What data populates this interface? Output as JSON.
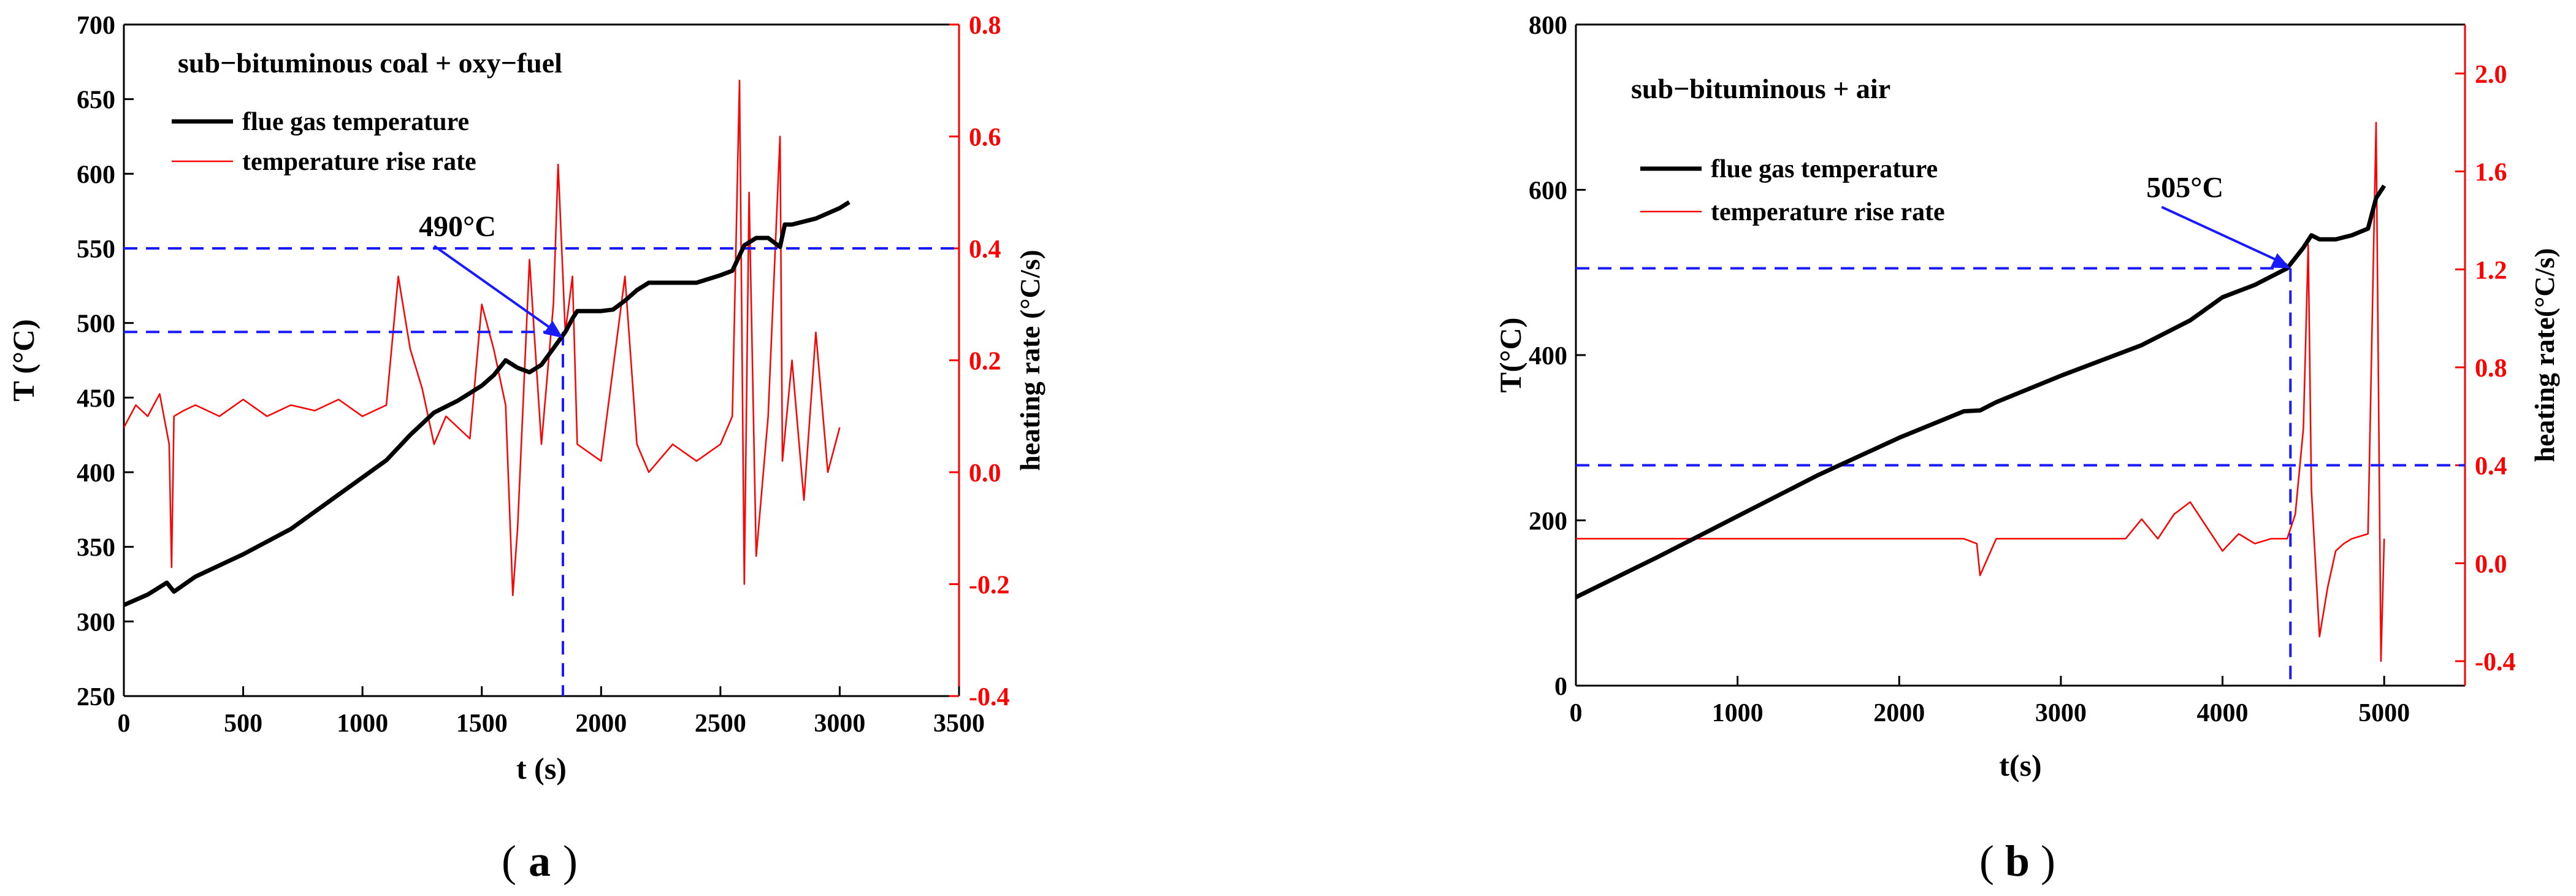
{
  "chart_data": [
    {
      "type": "line",
      "panel_label": "a",
      "title": "sub−bituminous coal + oxy−fuel",
      "xlabel": "t (s)",
      "ylabel_left": "T (°C)",
      "ylabel_right": "heating rate (°C/s)",
      "xlim": [
        0,
        3500
      ],
      "ylim_left": [
        250,
        700
      ],
      "ylim_right": [
        -0.4,
        0.8
      ],
      "xticks": [
        "0",
        "500",
        "1000",
        "1500",
        "2000",
        "2500",
        "3000",
        "3500"
      ],
      "yticks_left": [
        "250",
        "300",
        "350",
        "400",
        "450",
        "500",
        "550",
        "600",
        "650",
        "700"
      ],
      "yticks_right": [
        "-0.4",
        "-0.2",
        "0.0",
        "0.2",
        "0.4",
        "0.6",
        "0.8"
      ],
      "legend": [
        "flue gas temperature",
        "temperature rise rate"
      ],
      "annotation": {
        "text": "490°C",
        "x": 1840,
        "y": 490
      },
      "reference_lines": {
        "h_temperature": 494,
        "h_rate": 0.4,
        "v_time": 1840
      },
      "colors": {
        "temperature": "#000000",
        "rate": "#ff0000",
        "reference": "#1a1aff",
        "right_axis": "#ff0000"
      },
      "series": [
        {
          "name": "flue gas temperature",
          "axis": "left",
          "x": [
            0,
            100,
            180,
            210,
            300,
            500,
            700,
            900,
            1100,
            1200,
            1300,
            1400,
            1500,
            1550,
            1600,
            1650,
            1700,
            1750,
            1800,
            1850,
            1880,
            1900,
            2000,
            2050,
            2100,
            2150,
            2200,
            2250,
            2400,
            2500,
            2550,
            2600,
            2650,
            2700,
            2750,
            2770,
            2800,
            2900,
            3000,
            3040
          ],
          "y": [
            311,
            318,
            326,
            320,
            330,
            345,
            362,
            385,
            408,
            425,
            440,
            448,
            458,
            465,
            475,
            470,
            467,
            472,
            483,
            494,
            503,
            508,
            508,
            509,
            515,
            522,
            527,
            527,
            527,
            532,
            535,
            552,
            557,
            557,
            551,
            566,
            566,
            570,
            577,
            581
          ]
        },
        {
          "name": "temperature rise rate",
          "axis": "right",
          "x": [
            0,
            50,
            100,
            150,
            190,
            200,
            210,
            250,
            300,
            400,
            500,
            600,
            700,
            800,
            900,
            1000,
            1100,
            1150,
            1200,
            1250,
            1300,
            1350,
            1400,
            1450,
            1500,
            1550,
            1600,
            1630,
            1650,
            1700,
            1750,
            1800,
            1820,
            1850,
            1880,
            1900,
            2000,
            2100,
            2150,
            2200,
            2300,
            2400,
            2500,
            2550,
            2580,
            2600,
            2620,
            2650,
            2700,
            2750,
            2760,
            2800,
            2850,
            2900,
            2950,
            3000
          ],
          "y": [
            0.08,
            0.12,
            0.1,
            0.14,
            0.05,
            -0.17,
            0.1,
            0.11,
            0.12,
            0.1,
            0.13,
            0.1,
            0.12,
            0.11,
            0.13,
            0.1,
            0.12,
            0.35,
            0.22,
            0.15,
            0.05,
            0.1,
            0.08,
            0.06,
            0.3,
            0.22,
            0.12,
            -0.22,
            -0.1,
            0.38,
            0.05,
            0.3,
            0.55,
            0.25,
            0.35,
            0.05,
            0.02,
            0.35,
            0.05,
            0.0,
            0.05,
            0.02,
            0.05,
            0.1,
            0.7,
            -0.2,
            0.5,
            -0.15,
            0.1,
            0.6,
            0.02,
            0.2,
            -0.05,
            0.25,
            0.0,
            0.08
          ]
        }
      ]
    },
    {
      "type": "line",
      "panel_label": "b",
      "title": "sub−bituminous + air",
      "xlabel": "t(s)",
      "ylabel_left": "T(°C)",
      "ylabel_right": "heating rate(°C/s)",
      "xlim": [
        0,
        5500
      ],
      "ylim_left": [
        0,
        800
      ],
      "ylim_right": [
        -0.5,
        2.2
      ],
      "xticks": [
        "0",
        "1000",
        "2000",
        "3000",
        "4000",
        "5000"
      ],
      "yticks_left": [
        "0",
        "200",
        "400",
        "600",
        "800"
      ],
      "yticks_right": [
        "-0.4",
        "0.0",
        "0.4",
        "0.8",
        "1.2",
        "1.6",
        "2.0"
      ],
      "legend": [
        "flue gas temperature",
        "temperature rise rate"
      ],
      "annotation": {
        "text": "505°C",
        "x": 4420,
        "y": 505
      },
      "reference_lines": {
        "h_temperature": 505,
        "h_rate": 0.4,
        "v_time": 4420
      },
      "colors": {
        "temperature": "#000000",
        "rate": "#ff0000",
        "reference": "#1a1aff",
        "right_axis": "#ff0000"
      },
      "series": [
        {
          "name": "flue gas temperature",
          "axis": "left",
          "x": [
            0,
            500,
            1000,
            1500,
            2000,
            2400,
            2500,
            2600,
            3000,
            3500,
            3800,
            4000,
            4200,
            4400,
            4500,
            4550,
            4600,
            4700,
            4800,
            4900,
            4950,
            5000
          ],
          "y": [
            107,
            155,
            205,
            255,
            300,
            332,
            333,
            343,
            375,
            412,
            442,
            470,
            485,
            505,
            530,
            545,
            540,
            540,
            545,
            553,
            590,
            605
          ]
        },
        {
          "name": "temperature rise rate",
          "axis": "right",
          "x": [
            0,
            500,
            1000,
            1500,
            2000,
            2400,
            2480,
            2500,
            2600,
            2800,
            3000,
            3200,
            3400,
            3500,
            3600,
            3700,
            3800,
            3900,
            4000,
            4100,
            4200,
            4300,
            4400,
            4450,
            4500,
            4530,
            4550,
            4600,
            4650,
            4700,
            4750,
            4800,
            4900,
            4950,
            4980,
            5000
          ],
          "y": [
            0.1,
            0.1,
            0.1,
            0.1,
            0.1,
            0.1,
            0.08,
            -0.05,
            0.1,
            0.1,
            0.1,
            0.1,
            0.1,
            0.18,
            0.1,
            0.2,
            0.25,
            0.15,
            0.05,
            0.12,
            0.08,
            0.1,
            0.1,
            0.2,
            0.55,
            1.3,
            0.3,
            -0.3,
            -0.1,
            0.05,
            0.08,
            0.1,
            0.12,
            1.8,
            -0.4,
            0.1
          ]
        }
      ]
    }
  ]
}
